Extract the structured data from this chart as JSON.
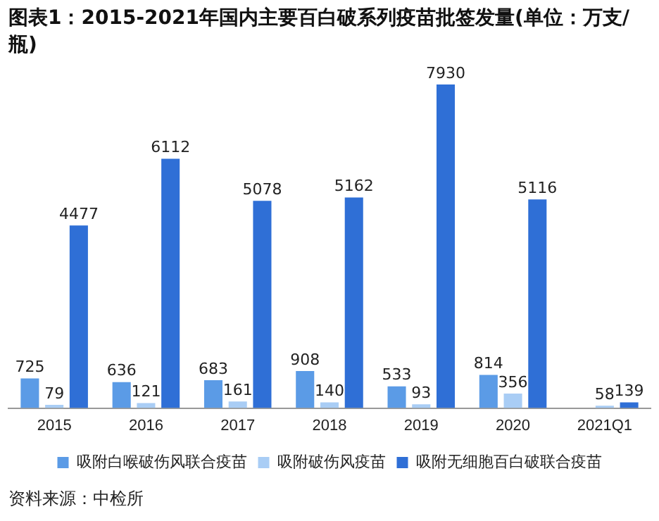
{
  "chart_data": {
    "type": "bar",
    "title": "图表1：2015-2021年国内主要百白破系列疫苗批签发量(单位：万支/瓶)",
    "categories": [
      "2015",
      "2016",
      "2017",
      "2018",
      "2019",
      "2020",
      "2021Q1"
    ],
    "series": [
      {
        "name": "吸附白喉破伤风联合疫苗",
        "color": "#5b9be6",
        "values": [
          725,
          636,
          683,
          908,
          533,
          814,
          null
        ]
      },
      {
        "name": "吸附破伤风疫苗",
        "color": "#a9cdf5",
        "values": [
          79,
          121,
          161,
          140,
          93,
          356,
          58
        ]
      },
      {
        "name": "吸附无细胞百白破联合疫苗",
        "color": "#2f6fd6",
        "values": [
          4477,
          6112,
          5078,
          5162,
          7930,
          5116,
          139
        ]
      }
    ],
    "data_labels": true,
    "grid": false,
    "legend": "bottom",
    "annotations": [
      "资料来源：中检所"
    ]
  }
}
